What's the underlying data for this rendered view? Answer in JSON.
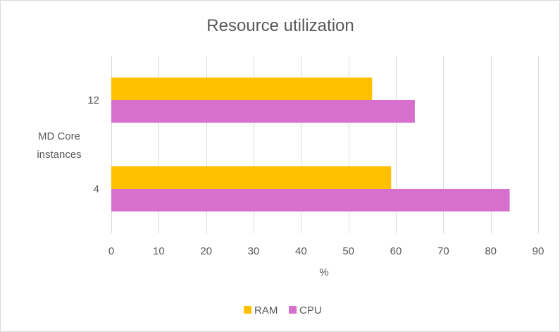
{
  "chart_data": {
    "type": "bar",
    "orientation": "horizontal",
    "title": "Resource utilization",
    "xlabel": "%",
    "ylabel_lines": [
      "MD Core",
      "instances"
    ],
    "categories": [
      "12",
      "4"
    ],
    "series": [
      {
        "name": "RAM",
        "color": "#FFC000",
        "values": [
          55,
          59
        ]
      },
      {
        "name": "CPU",
        "color": "#D670CC",
        "values": [
          64,
          84
        ]
      }
    ],
    "xlim": [
      0,
      90
    ],
    "xticks": [
      0,
      10,
      20,
      30,
      40,
      50,
      60,
      70,
      80,
      90
    ],
    "grid": true,
    "legend_position": "bottom"
  }
}
